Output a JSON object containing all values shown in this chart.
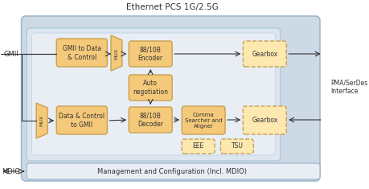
{
  "title": "Ethernet PCS 1G/2.5G",
  "bg_outer": "#cdd9e5",
  "bg_inner": "#dde6ef",
  "bg_inner2": "#e8eef4",
  "box_fill_solid": "#f5c97a",
  "box_edge_solid": "#c8a050",
  "box_fill_dashed": "#fde8b0",
  "box_edge_dashed": "#c8a050",
  "mgmt_fill": "#e8eef4",
  "mgmt_edge": "#9ab0c8",
  "text_color": "#333333",
  "arrow_color": "#333333",
  "interface_label": "PMA/SerDes\nInterface",
  "mgmt_label": "Management and Configuration (Incl. MDIO)",
  "gmii_label": "GMII",
  "mdio_label": "MDIO"
}
